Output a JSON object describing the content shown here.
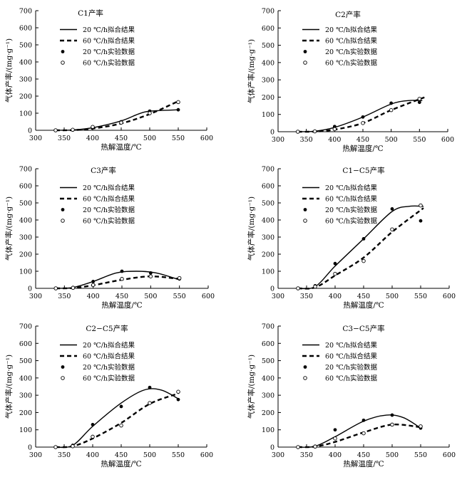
{
  "chart_data": [
    {
      "type": "line",
      "title": "C1产率",
      "xlabel": "热解温度/℃",
      "ylabel": "气体产率/(mg·g⁻¹)",
      "xlim": [
        300,
        600
      ],
      "ylim": [
        0,
        700
      ],
      "xticks": [
        "300",
        "350",
        "400",
        "450",
        "500",
        "550",
        "600"
      ],
      "yticks": [
        "0",
        "100",
        "200",
        "300",
        "400",
        "500",
        "600",
        "700"
      ],
      "legend_position": "top-left",
      "series": [
        {
          "name": "20 ℃/h拟合结果",
          "kind": "fit",
          "style": "solid",
          "x": [
            335,
            365,
            400,
            450,
            480,
            500,
            550
          ],
          "y": [
            0,
            2,
            15,
            55,
            95,
            112,
            120
          ]
        },
        {
          "name": "60 ℃/h拟合结果",
          "kind": "fit",
          "style": "dashed",
          "x": [
            335,
            365,
            400,
            450,
            500,
            550
          ],
          "y": [
            0,
            1,
            10,
            40,
            95,
            170
          ]
        },
        {
          "name": "20 ℃/h实验数据",
          "kind": "data",
          "marker": "filled",
          "x": [
            335,
            365,
            400,
            450,
            500,
            550
          ],
          "y": [
            0,
            2,
            15,
            50,
            112,
            120
          ]
        },
        {
          "name": "60 ℃/h实验数据",
          "kind": "data",
          "marker": "open",
          "x": [
            335,
            365,
            400,
            450,
            500,
            550
          ],
          "y": [
            0,
            3,
            20,
            45,
            100,
            165
          ]
        }
      ]
    },
    {
      "type": "line",
      "title": "C2产率",
      "xlabel": "热解温度/℃",
      "ylabel": "气体产率/(mg·g⁻¹)",
      "xlim": [
        300,
        600
      ],
      "ylim": [
        0,
        700
      ],
      "xticks": [
        "300",
        "350",
        "400",
        "450",
        "500",
        "550",
        "600"
      ],
      "yticks": [
        "0",
        "100",
        "200",
        "300",
        "400",
        "500",
        "600",
        "700"
      ],
      "legend_position": "top-left",
      "series": [
        {
          "name": "20 ℃/h拟合结果",
          "kind": "fit",
          "style": "solid",
          "x": [
            335,
            365,
            400,
            450,
            500,
            530,
            555
          ],
          "y": [
            0,
            3,
            25,
            85,
            160,
            180,
            180
          ]
        },
        {
          "name": "60 ℃/h拟合结果",
          "kind": "fit",
          "style": "dashed",
          "x": [
            335,
            365,
            400,
            450,
            500,
            560
          ],
          "y": [
            0,
            1,
            12,
            50,
            125,
            200
          ]
        },
        {
          "name": "20 ℃/h实验数据",
          "kind": "data",
          "marker": "filled",
          "x": [
            335,
            365,
            400,
            450,
            500,
            550
          ],
          "y": [
            0,
            3,
            30,
            85,
            165,
            170
          ]
        },
        {
          "name": "60 ℃/h实验数据",
          "kind": "data",
          "marker": "open",
          "x": [
            335,
            365,
            400,
            450,
            500,
            550
          ],
          "y": [
            0,
            2,
            15,
            50,
            125,
            190
          ]
        }
      ]
    },
    {
      "type": "line",
      "title": "C3产率",
      "xlabel": "热解温度/℃",
      "ylabel": "气体产率/(mg·g⁻¹)",
      "xlim": [
        300,
        600
      ],
      "ylim": [
        0,
        700
      ],
      "xticks": [
        "300",
        "350",
        "400",
        "450",
        "500",
        "550",
        "600"
      ],
      "yticks": [
        "0",
        "100",
        "200",
        "300",
        "400",
        "500",
        "600",
        "700"
      ],
      "legend_position": "top-left",
      "series": [
        {
          "name": "20 ℃/h拟合结果",
          "kind": "fit",
          "style": "solid",
          "x": [
            335,
            365,
            400,
            440,
            475,
            510,
            550
          ],
          "y": [
            0,
            5,
            40,
            90,
            100,
            90,
            50
          ]
        },
        {
          "name": "60 ℃/h拟合结果",
          "kind": "fit",
          "style": "dashed",
          "x": [
            335,
            365,
            400,
            450,
            500,
            550
          ],
          "y": [
            0,
            2,
            18,
            50,
            70,
            55
          ]
        },
        {
          "name": "20 ℃/h实验数据",
          "kind": "data",
          "marker": "filled",
          "x": [
            335,
            365,
            400,
            450,
            500,
            550
          ],
          "y": [
            0,
            5,
            40,
            100,
            90,
            55
          ]
        },
        {
          "name": "60 ℃/h实验数据",
          "kind": "data",
          "marker": "open",
          "x": [
            335,
            365,
            400,
            450,
            500,
            550
          ],
          "y": [
            0,
            3,
            20,
            55,
            70,
            60
          ]
        }
      ]
    },
    {
      "type": "line",
      "title": "C1−C5产率",
      "xlabel": "热解温度/℃",
      "ylabel": "气体产率/(mg·g⁻¹)",
      "xlim": [
        300,
        600
      ],
      "ylim": [
        0,
        700
      ],
      "xticks": [
        "300",
        "350",
        "400",
        "450",
        "500",
        "550",
        "600"
      ],
      "yticks": [
        "0",
        "100",
        "200",
        "300",
        "400",
        "500",
        "600",
        "700"
      ],
      "legend_position": "top-left",
      "series": [
        {
          "name": "20 ℃/h拟合结果",
          "kind": "fit",
          "style": "solid",
          "x": [
            335,
            365,
            400,
            450,
            500,
            530,
            555
          ],
          "y": [
            0,
            10,
            130,
            290,
            450,
            480,
            480
          ]
        },
        {
          "name": "60 ℃/h拟合结果",
          "kind": "fit",
          "style": "dashed",
          "x": [
            335,
            365,
            400,
            450,
            500,
            555
          ],
          "y": [
            0,
            5,
            75,
            180,
            330,
            470
          ]
        },
        {
          "name": "20 ℃/h实验数据",
          "kind": "data",
          "marker": "filled",
          "x": [
            335,
            365,
            400,
            450,
            500,
            550
          ],
          "y": [
            0,
            15,
            145,
            290,
            465,
            395
          ]
        },
        {
          "name": "60 ℃/h实验数据",
          "kind": "data",
          "marker": "open",
          "x": [
            335,
            365,
            400,
            450,
            500,
            550
          ],
          "y": [
            0,
            10,
            85,
            160,
            345,
            485
          ]
        }
      ]
    },
    {
      "type": "line",
      "title": "C2−C5产率",
      "xlabel": "热解温度/℃",
      "ylabel": "气体产率/(mg·g⁻¹)",
      "xlim": [
        300,
        600
      ],
      "ylim": [
        0,
        700
      ],
      "xticks": [
        "300",
        "350",
        "400",
        "450",
        "500",
        "550",
        "600"
      ],
      "yticks": [
        "0",
        "100",
        "200",
        "300",
        "400",
        "500",
        "600",
        "700"
      ],
      "legend_position": "top-left",
      "series": [
        {
          "name": "20 ℃/h拟合结果",
          "kind": "fit",
          "style": "solid",
          "x": [
            335,
            365,
            400,
            450,
            490,
            520,
            550
          ],
          "y": [
            0,
            10,
            120,
            255,
            330,
            330,
            280
          ]
        },
        {
          "name": "60 ℃/h拟合结果",
          "kind": "fit",
          "style": "dashed",
          "x": [
            335,
            365,
            400,
            450,
            500,
            550
          ],
          "y": [
            0,
            5,
            50,
            140,
            250,
            310
          ]
        },
        {
          "name": "20 ℃/h实验数据",
          "kind": "data",
          "marker": "filled",
          "x": [
            335,
            365,
            400,
            450,
            500,
            550
          ],
          "y": [
            0,
            10,
            130,
            235,
            345,
            275
          ]
        },
        {
          "name": "60 ℃/h实验数据",
          "kind": "data",
          "marker": "open",
          "x": [
            335,
            365,
            400,
            450,
            500,
            550
          ],
          "y": [
            0,
            5,
            60,
            125,
            255,
            320
          ]
        }
      ]
    },
    {
      "type": "line",
      "title": "C3−C5产率",
      "xlabel": "热解温度/℃",
      "ylabel": "气体产率/(mg·g⁻¹)",
      "xlim": [
        300,
        600
      ],
      "ylim": [
        0,
        700
      ],
      "xticks": [
        "300",
        "350",
        "400",
        "450",
        "500",
        "550",
        "600"
      ],
      "yticks": [
        "0",
        "100",
        "200",
        "300",
        "400",
        "500",
        "600",
        "700"
      ],
      "legend_position": "top-left",
      "series": [
        {
          "name": "20 ℃/h拟合结果",
          "kind": "fit",
          "style": "solid",
          "x": [
            335,
            365,
            400,
            450,
            490,
            520,
            550
          ],
          "y": [
            0,
            5,
            60,
            150,
            185,
            170,
            110
          ]
        },
        {
          "name": "60 ℃/h拟合结果",
          "kind": "fit",
          "style": "dashed",
          "x": [
            335,
            365,
            400,
            450,
            500,
            550
          ],
          "y": [
            0,
            3,
            30,
            85,
            130,
            115
          ]
        },
        {
          "name": "20 ℃/h实验数据",
          "kind": "data",
          "marker": "filled",
          "x": [
            335,
            365,
            400,
            450,
            500,
            550
          ],
          "y": [
            0,
            5,
            100,
            155,
            185,
            110
          ]
        },
        {
          "name": "60 ℃/h实验数据",
          "kind": "data",
          "marker": "open",
          "x": [
            335,
            365,
            400,
            450,
            500,
            550
          ],
          "y": [
            0,
            3,
            50,
            80,
            130,
            120
          ]
        }
      ]
    }
  ]
}
